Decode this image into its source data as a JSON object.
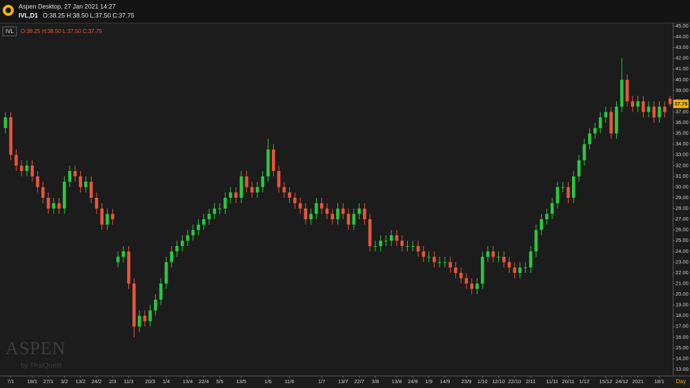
{
  "chart_data": {
    "type": "candlestick",
    "title": "Aspen Desktop, 27 Jan 2021 14:27",
    "subtitle": "IVL,D1",
    "symbol": "IVL",
    "ohlc_text": "O:38.25 H:38.50 L:37.50 C:37.75",
    "watermark": "ASPEN",
    "watermark_sub": "by ThaiQuest",
    "x_label": "Day",
    "up_color": "#27c93f",
    "down_color": "#e8553a",
    "grid": false,
    "categories": [
      null,
      "7/1",
      null,
      null,
      null,
      "18/1",
      null,
      null,
      "27/1",
      null,
      null,
      "3/2",
      null,
      null,
      "13/2",
      null,
      null,
      "24/2",
      null,
      null,
      "2/3",
      null,
      null,
      "11/3",
      null,
      null,
      null,
      "20/3",
      null,
      null,
      "1/4",
      null,
      null,
      null,
      "13/4",
      null,
      null,
      "22/4",
      null,
      null,
      "5/5",
      null,
      null,
      null,
      "13/5",
      null,
      null,
      null,
      null,
      "1/6",
      null,
      null,
      null,
      "11/6",
      null,
      null,
      null,
      null,
      null,
      "1/7",
      null,
      null,
      null,
      "13/7",
      null,
      null,
      "22/7",
      null,
      null,
      "3/8",
      null,
      null,
      null,
      "13/8",
      null,
      null,
      "24/8",
      null,
      null,
      "1/9",
      null,
      null,
      "14/9",
      null,
      null,
      null,
      "23/9",
      null,
      null,
      "1/10",
      null,
      null,
      "12/10",
      null,
      null,
      "22/10",
      null,
      null,
      "2/11",
      null,
      null,
      null,
      "11/11",
      null,
      null,
      "20/11",
      null,
      null,
      "1/12",
      null,
      null,
      null,
      "15/12",
      null,
      null,
      "24/12",
      null,
      null,
      "2021",
      null,
      null,
      null,
      "18/1",
      null,
      null
    ],
    "open": [
      35.5,
      36.5,
      33,
      32,
      31.5,
      32,
      31,
      30,
      29,
      28,
      28.5,
      28,
      30.5,
      31.5,
      31,
      30,
      30.5,
      29,
      28,
      26.5,
      27.5,
      23,
      23.5,
      24,
      21,
      17,
      18,
      17.5,
      18.5,
      19.5,
      21,
      23,
      24,
      24.5,
      25,
      25.5,
      26,
      26.5,
      27,
      27.5,
      28,
      28,
      29,
      29.5,
      29,
      31,
      30,
      29.5,
      30,
      31,
      33.5,
      31.5,
      30,
      29.5,
      29,
      28.5,
      28,
      27,
      27.5,
      28.5,
      28,
      27.5,
      27,
      28,
      27.5,
      26.5,
      27.5,
      28,
      27,
      24.5,
      24.5,
      25,
      25,
      25.5,
      25,
      24.5,
      24.5,
      24.5,
      24,
      23.5,
      23.5,
      23,
      23,
      23,
      22.5,
      22,
      21.5,
      21,
      20.5,
      21,
      23.5,
      24,
      23.5,
      23.5,
      23,
      22.5,
      22,
      22.5,
      22.5,
      24,
      26,
      27,
      27.5,
      28.5,
      30,
      30,
      29,
      31,
      32.5,
      34,
      35,
      35.5,
      36.5,
      37,
      35,
      37.5,
      40,
      38,
      37.5,
      38,
      37,
      37.5,
      36.5,
      37.5,
      38.25
    ],
    "high": [
      37,
      37,
      33.5,
      32.5,
      32.5,
      32.5,
      31.5,
      30.5,
      29.5,
      29,
      29,
      31,
      32,
      32,
      31.5,
      31,
      31,
      29.5,
      28.5,
      28,
      28,
      24,
      24.5,
      24.5,
      21.5,
      18.5,
      18.5,
      19,
      20,
      21.5,
      23.5,
      24.5,
      25,
      25.5,
      26,
      26.5,
      27,
      27.5,
      28,
      28.5,
      28.5,
      29.5,
      30,
      30,
      31.5,
      31.5,
      30.5,
      30.5,
      31.5,
      34.5,
      34,
      32,
      30.5,
      30,
      29.5,
      29,
      28.5,
      28,
      29,
      29,
      28.5,
      28,
      28.5,
      28.5,
      28,
      28,
      28.5,
      28.5,
      27.5,
      25,
      25.5,
      25.5,
      26,
      26,
      25.5,
      25,
      25,
      25,
      24.5,
      24,
      24,
      23.5,
      23.5,
      23.5,
      23,
      22.5,
      22,
      21.5,
      21.5,
      24,
      24.5,
      24.5,
      24,
      24,
      23.5,
      23,
      23,
      23,
      24.5,
      26.5,
      27.5,
      28,
      29,
      30.5,
      30.5,
      30.5,
      31.5,
      33,
      34.5,
      35.5,
      36,
      37,
      37.5,
      37.5,
      38,
      42,
      40.5,
      38.5,
      38.5,
      38.5,
      38,
      38,
      38,
      38,
      38.5
    ],
    "low": [
      35,
      32.5,
      31.5,
      31,
      31,
      30.5,
      29.5,
      28.5,
      27.5,
      27.5,
      27.5,
      27.5,
      30,
      30.5,
      29.5,
      29.5,
      28.5,
      27.5,
      26,
      26,
      26.5,
      22.5,
      23,
      20.5,
      16,
      16.5,
      17,
      17,
      18,
      19,
      20.5,
      22.5,
      23.5,
      24,
      24.5,
      25,
      25.5,
      26,
      26.5,
      27,
      27.5,
      27.5,
      28.5,
      28.5,
      28.5,
      29.5,
      29,
      29,
      29.5,
      30.5,
      31,
      29.5,
      29,
      28.5,
      28,
      27.5,
      26.5,
      26.5,
      27,
      27.5,
      27,
      26.5,
      26.5,
      27,
      26,
      26,
      27,
      26.5,
      24,
      24,
      24,
      24.5,
      24.5,
      24.5,
      24,
      24,
      24,
      23.5,
      23,
      23,
      22.5,
      22.5,
      22.5,
      22,
      21.5,
      21,
      20.5,
      20,
      20,
      20.5,
      23,
      23,
      23,
      22.5,
      22,
      21.5,
      21.5,
      22,
      22,
      23.5,
      25.5,
      26.5,
      27,
      28,
      29.5,
      28.5,
      28.5,
      30.5,
      32,
      33.5,
      34.5,
      35,
      36,
      34.5,
      34.5,
      37,
      37.5,
      37,
      37,
      36.5,
      36.5,
      36,
      36,
      36.5,
      37.5
    ],
    "close": [
      36.5,
      33,
      32,
      31.5,
      32,
      31,
      30,
      29,
      28,
      28.5,
      28,
      30.5,
      31.5,
      31,
      30,
      30.5,
      29,
      28,
      26.5,
      27.5,
      27,
      23.5,
      24,
      21,
      17,
      18,
      17.5,
      18.5,
      19.5,
      21,
      23,
      24,
      24.5,
      25,
      25.5,
      26,
      26.5,
      27,
      27.5,
      28,
      28,
      29,
      29.5,
      29,
      31,
      30,
      29.5,
      30,
      31,
      33.5,
      31.5,
      30,
      29.5,
      29,
      28.5,
      28,
      27,
      27.5,
      28.5,
      28,
      27.5,
      27,
      28,
      27.5,
      26.5,
      27.5,
      28,
      27,
      24.5,
      24.5,
      25,
      25,
      25.5,
      25,
      24.5,
      24.5,
      24.5,
      24,
      23.5,
      23.5,
      23,
      23,
      23,
      22.5,
      22,
      21.5,
      21,
      20.5,
      21,
      23.5,
      24,
      23.5,
      23.5,
      23,
      22.5,
      22,
      22.5,
      22.5,
      24,
      26,
      27,
      27.5,
      28.5,
      30,
      30,
      29,
      31,
      32.5,
      34,
      35,
      35.5,
      36.5,
      37,
      35,
      37.5,
      40,
      38,
      37.5,
      38,
      37,
      37.5,
      36.5,
      37.5,
      37,
      37.75
    ],
    "ylim": [
      12.5,
      45.5
    ],
    "yticks": [
      {
        "value": 13,
        "label": "13.00"
      },
      {
        "value": 14,
        "label": "14.00"
      },
      {
        "value": 15,
        "label": "15.00"
      },
      {
        "value": 16,
        "label": "16.00"
      },
      {
        "value": 17,
        "label": "17.00"
      },
      {
        "value": 18,
        "label": "18.00"
      },
      {
        "value": 19,
        "label": "19.00"
      },
      {
        "value": 20,
        "label": "20.00"
      },
      {
        "value": 21,
        "label": "21.00"
      },
      {
        "value": 22,
        "label": "22.00"
      },
      {
        "value": 23,
        "label": "23.00"
      },
      {
        "value": 24,
        "label": "24.00"
      },
      {
        "value": 25,
        "label": "25.00"
      },
      {
        "value": 26,
        "label": "26.00"
      },
      {
        "value": 27,
        "label": "27.00"
      },
      {
        "value": 28,
        "label": "28.00"
      },
      {
        "value": 29,
        "label": "29.00"
      },
      {
        "value": 30,
        "label": "30.00"
      },
      {
        "value": 31,
        "label": "31.00"
      },
      {
        "value": 32,
        "label": "32.00"
      },
      {
        "value": 33,
        "label": "33.00"
      },
      {
        "value": 34,
        "label": "34.00"
      },
      {
        "value": 35,
        "label": "35.00"
      },
      {
        "value": 36,
        "label": "36.00"
      },
      {
        "value": 37,
        "label": "37.00"
      },
      {
        "value": 38,
        "label": "38.00"
      },
      {
        "value": 39,
        "label": "39.00"
      },
      {
        "value": 40,
        "label": "40.00"
      },
      {
        "value": 41,
        "label": "41.00"
      },
      {
        "value": 42,
        "label": "42.00"
      },
      {
        "value": 43,
        "label": "43.00"
      },
      {
        "value": 44,
        "label": "44.00"
      },
      {
        "value": 45,
        "label": "45.00"
      }
    ]
  }
}
